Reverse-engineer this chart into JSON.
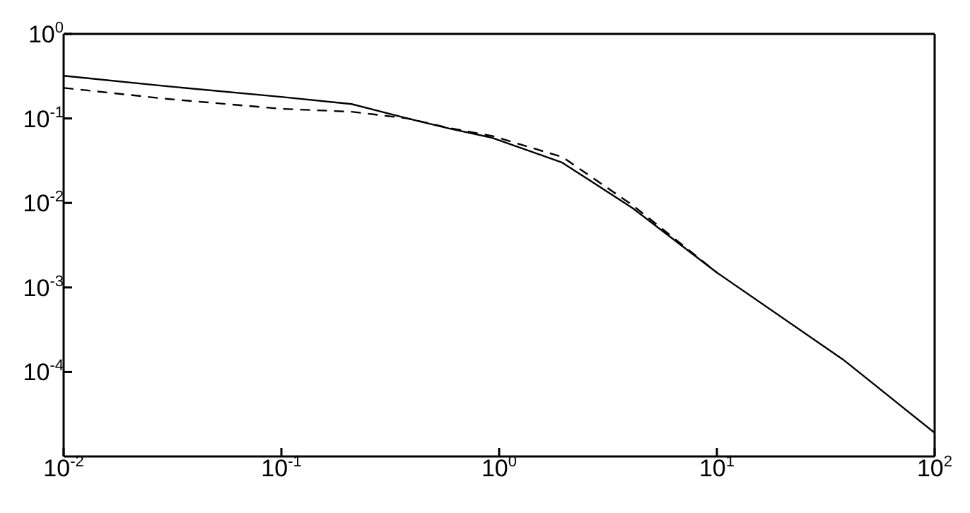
{
  "chart_data": {
    "type": "line",
    "log": "xy",
    "legend": false,
    "marker": "none",
    "xlim": [
      0.01,
      100
    ],
    "ylim": [
      1e-05,
      1
    ],
    "xticks": [
      {
        "value": 0.01,
        "label": "10$^{-2}$"
      },
      {
        "value": 0.1,
        "label": "10$^{-1}$"
      },
      {
        "value": 1,
        "label": "10$^{0}$"
      },
      {
        "value": 10,
        "label": "10$^{1}$"
      },
      {
        "value": 100,
        "label": "10$^{2}$"
      }
    ],
    "yticks": [
      {
        "value": 0.0001,
        "label": "10$^{-4}$"
      },
      {
        "value": 0.001,
        "label": "10$^{-3}$"
      },
      {
        "value": 0.01,
        "label": "10$^{-2}$"
      },
      {
        "value": 0.1,
        "label": "10$^{-1}$"
      },
      {
        "value": 1,
        "label": "10$^{0}$"
      }
    ],
    "series": [
      {
        "color": "#000000",
        "line_style": "solid",
        "x": [
          0.01,
          0.03,
          0.1,
          0.21,
          0.38,
          0.59,
          0.93,
          1.95,
          4.1,
          10,
          38,
          100
        ],
        "values": [
          0.32,
          0.24,
          0.18,
          0.148,
          0.1,
          0.076,
          0.059,
          0.03,
          0.0087,
          0.0015,
          0.00014,
          1.9e-05
        ]
      },
      {
        "color": "#000000",
        "line_style": "dashed",
        "x": [
          0.01,
          0.03,
          0.1,
          0.21,
          0.38,
          0.59,
          0.93,
          1.95,
          4.1,
          10
        ],
        "values": [
          0.23,
          0.17,
          0.13,
          0.12,
          0.1,
          0.077,
          0.062,
          0.035,
          0.0094,
          0.0015
        ]
      }
    ]
  }
}
